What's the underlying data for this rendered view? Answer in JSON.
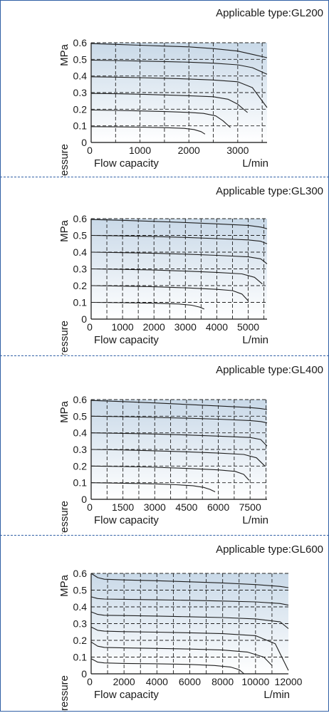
{
  "colors": {
    "frame": "#2f5fa5",
    "plot_bg_top": "#c9d9e8",
    "plot_bg_bottom": "#ffffff",
    "curve": "#1f1f1f"
  },
  "chart_data": [
    {
      "type": "line",
      "title": "Applicable type:GL200",
      "xlabel": "Flow capacity",
      "xunit": "L/min",
      "ylabel": "Outlet pressure",
      "yunit": "MPa",
      "xlim": [
        0,
        3600
      ],
      "ylim": [
        0,
        0.6
      ],
      "xticks": [
        0,
        1000,
        2000,
        3000
      ],
      "yticks": [
        0,
        0.1,
        0.2,
        0.3,
        0.4,
        0.5,
        0.6
      ],
      "grid": true,
      "series": [
        {
          "x": [
            0,
            500,
            1000,
            1500,
            1900,
            2100,
            2250,
            2330
          ],
          "y": [
            0.095,
            0.094,
            0.092,
            0.089,
            0.085,
            0.078,
            0.065,
            0.05
          ]
        },
        {
          "x": [
            0,
            500,
            1000,
            1500,
            2000,
            2300,
            2550,
            2700,
            2850
          ],
          "y": [
            0.195,
            0.193,
            0.19,
            0.186,
            0.181,
            0.175,
            0.16,
            0.13,
            0.09
          ]
        },
        {
          "x": [
            0,
            500,
            1000,
            1500,
            2000,
            2500,
            2800,
            3000,
            3200
          ],
          "y": [
            0.295,
            0.293,
            0.29,
            0.286,
            0.281,
            0.275,
            0.26,
            0.23,
            0.18
          ]
        },
        {
          "x": [
            0,
            500,
            1000,
            1500,
            2000,
            2500,
            3000,
            3300,
            3600
          ],
          "y": [
            0.395,
            0.393,
            0.39,
            0.386,
            0.382,
            0.376,
            0.365,
            0.33,
            0.21
          ]
        },
        {
          "x": [
            0,
            500,
            1000,
            1500,
            2000,
            2500,
            3000,
            3300,
            3600
          ],
          "y": [
            0.495,
            0.493,
            0.49,
            0.487,
            0.483,
            0.477,
            0.467,
            0.45,
            0.41
          ]
        },
        {
          "x": [
            0,
            500,
            1000,
            1500,
            2000,
            2500,
            3000,
            3300,
            3600
          ],
          "y": [
            0.595,
            0.59,
            0.585,
            0.58,
            0.575,
            0.565,
            0.55,
            0.53,
            0.51
          ]
        }
      ]
    },
    {
      "type": "line",
      "title": "Applicable type:GL300",
      "xlabel": "Flow capacity",
      "xunit": "L/min",
      "ylabel": "Outlet pressure",
      "yunit": "MPa",
      "xlim": [
        0,
        5600
      ],
      "ylim": [
        0,
        0.6
      ],
      "xticks": [
        0,
        1000,
        2000,
        3000,
        4000,
        5000
      ],
      "yticks": [
        0,
        0.1,
        0.2,
        0.3,
        0.4,
        0.5,
        0.6
      ],
      "grid": true,
      "series": [
        {
          "x": [
            0,
            1000,
            2000,
            2800,
            3200,
            3450,
            3600
          ],
          "y": [
            0.1,
            0.098,
            0.095,
            0.09,
            0.083,
            0.072,
            0.06
          ]
        },
        {
          "x": [
            0,
            1000,
            2000,
            3000,
            4000,
            4500,
            4800,
            5000
          ],
          "y": [
            0.2,
            0.197,
            0.193,
            0.187,
            0.178,
            0.17,
            0.15,
            0.11
          ]
        },
        {
          "x": [
            0,
            1000,
            2000,
            3000,
            4000,
            4800,
            5200,
            5450
          ],
          "y": [
            0.3,
            0.297,
            0.293,
            0.287,
            0.279,
            0.27,
            0.25,
            0.21
          ]
        },
        {
          "x": [
            0,
            1000,
            2000,
            3000,
            4000,
            5000,
            5400,
            5600
          ],
          "y": [
            0.4,
            0.397,
            0.393,
            0.388,
            0.381,
            0.372,
            0.36,
            0.33
          ]
        },
        {
          "x": [
            0,
            1000,
            2000,
            3000,
            4000,
            5000,
            5400,
            5600
          ],
          "y": [
            0.5,
            0.497,
            0.493,
            0.488,
            0.481,
            0.473,
            0.465,
            0.45
          ]
        },
        {
          "x": [
            0,
            1000,
            2000,
            3000,
            4000,
            5000,
            5400,
            5600
          ],
          "y": [
            0.595,
            0.59,
            0.584,
            0.577,
            0.569,
            0.56,
            0.55,
            0.54
          ]
        }
      ]
    },
    {
      "type": "line",
      "title": "Applicable type:GL400",
      "xlabel": "Flow capacity",
      "xunit": "L/min",
      "ylabel": "Outlet pressure",
      "yunit": "MPa",
      "xlim": [
        0,
        8300
      ],
      "ylim": [
        0,
        0.6
      ],
      "xticks": [
        0,
        1500,
        3000,
        4500,
        6000,
        7500
      ],
      "yticks": [
        0,
        0.1,
        0.2,
        0.3,
        0.4,
        0.5,
        0.6
      ],
      "grid": true,
      "series": [
        {
          "x": [
            0,
            1500,
            3000,
            4000,
            4800,
            5300,
            5600,
            5850
          ],
          "y": [
            0.1,
            0.097,
            0.093,
            0.088,
            0.082,
            0.072,
            0.06,
            0.045
          ]
        },
        {
          "x": [
            0,
            1500,
            3000,
            4500,
            6000,
            6800,
            7200,
            7450
          ],
          "y": [
            0.2,
            0.197,
            0.193,
            0.186,
            0.177,
            0.168,
            0.15,
            0.115
          ]
        },
        {
          "x": [
            0,
            1500,
            3000,
            4500,
            6000,
            7200,
            7800,
            8200
          ],
          "y": [
            0.3,
            0.297,
            0.292,
            0.286,
            0.278,
            0.27,
            0.25,
            0.2
          ]
        },
        {
          "x": [
            0,
            1500,
            3000,
            4500,
            6000,
            7500,
            8000,
            8300
          ],
          "y": [
            0.4,
            0.397,
            0.393,
            0.387,
            0.38,
            0.372,
            0.36,
            0.32
          ]
        },
        {
          "x": [
            0,
            1500,
            3000,
            4500,
            6000,
            7500,
            8000,
            8300
          ],
          "y": [
            0.5,
            0.497,
            0.493,
            0.488,
            0.482,
            0.474,
            0.468,
            0.46
          ]
        },
        {
          "x": [
            0,
            1500,
            3000,
            4500,
            6000,
            7500,
            8000,
            8300
          ],
          "y": [
            0.595,
            0.588,
            0.58,
            0.571,
            0.562,
            0.552,
            0.546,
            0.54
          ]
        }
      ]
    },
    {
      "type": "line",
      "title": "Applicable type:GL600",
      "xlabel": "Flow capacity",
      "xunit": "L/min",
      "ylabel": "Outlet pressure",
      "yunit": "MPa",
      "xlim": [
        0,
        12000
      ],
      "ylim": [
        0,
        0.6
      ],
      "xticks": [
        0,
        2000,
        4000,
        6000,
        8000,
        10000,
        12000
      ],
      "yticks": [
        0,
        0.1,
        0.2,
        0.3,
        0.4,
        0.5,
        0.6
      ],
      "grid": true,
      "series": [
        {
          "x": [
            0,
            400,
            800,
            2000,
            4000,
            6000,
            7500,
            8500,
            9000,
            9300
          ],
          "y": [
            0.09,
            0.07,
            0.065,
            0.062,
            0.06,
            0.056,
            0.05,
            0.04,
            0.025,
            0.0
          ]
        },
        {
          "x": [
            0,
            400,
            800,
            2000,
            4000,
            6000,
            8000,
            9500,
            10500,
            11000
          ],
          "y": [
            0.19,
            0.165,
            0.158,
            0.155,
            0.152,
            0.148,
            0.142,
            0.13,
            0.1,
            0.05
          ]
        },
        {
          "x": [
            0,
            400,
            800,
            2000,
            4000,
            6000,
            8000,
            10000,
            11200,
            12000
          ],
          "y": [
            0.28,
            0.26,
            0.255,
            0.252,
            0.249,
            0.245,
            0.24,
            0.228,
            0.18,
            0.02
          ]
        },
        {
          "x": [
            0,
            400,
            800,
            2000,
            4000,
            6000,
            8000,
            10000,
            11500,
            12000
          ],
          "y": [
            0.37,
            0.355,
            0.35,
            0.348,
            0.345,
            0.341,
            0.336,
            0.328,
            0.31,
            0.27
          ]
        },
        {
          "x": [
            0,
            400,
            800,
            2000,
            4000,
            6000,
            8000,
            10000,
            11500,
            12000
          ],
          "y": [
            0.46,
            0.45,
            0.447,
            0.445,
            0.442,
            0.439,
            0.435,
            0.43,
            0.42,
            0.41
          ]
        },
        {
          "x": [
            0,
            400,
            800,
            2000,
            4000,
            6000,
            8000,
            10000,
            11500,
            12000
          ],
          "y": [
            0.6,
            0.575,
            0.565,
            0.561,
            0.556,
            0.55,
            0.543,
            0.533,
            0.522,
            0.515
          ]
        }
      ]
    }
  ]
}
